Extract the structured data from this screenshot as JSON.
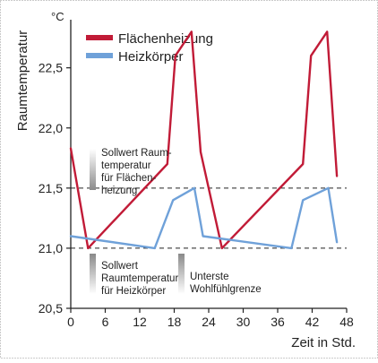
{
  "chart_data": {
    "type": "line",
    "title": "",
    "xlabel": "Zeit in Std.",
    "ylabel": "Raumtemperatur",
    "yunit": "°C",
    "xlim": [
      0,
      48
    ],
    "ylim": [
      20.5,
      22.9
    ],
    "xticks": [
      0,
      6,
      12,
      18,
      24,
      30,
      36,
      42,
      48
    ],
    "xtick_labels": [
      "0",
      "6",
      "12",
      "18",
      "24",
      "30",
      "36",
      "42",
      "48"
    ],
    "yticks": [
      20.5,
      21.0,
      21.5,
      22.0,
      22.5
    ],
    "ytick_labels": [
      "20,5",
      "21,0",
      "21,5",
      "22,0",
      "22,5"
    ],
    "grid": false,
    "legend_position": "top-right",
    "series": [
      {
        "name": "Flächenheizung",
        "color": "#c11b37",
        "points": [
          [
            0,
            21.83
          ],
          [
            3,
            21.0
          ],
          [
            16.8,
            21.7
          ],
          [
            18.2,
            22.6
          ],
          [
            21.0,
            22.8
          ],
          [
            22.6,
            21.8
          ],
          [
            26.3,
            21.0
          ],
          [
            40.4,
            21.7
          ],
          [
            41.8,
            22.6
          ],
          [
            44.6,
            22.8
          ],
          [
            46.3,
            21.6
          ]
        ]
      },
      {
        "name": "Heizkörper",
        "color": "#6fa1d9",
        "points": [
          [
            0,
            21.1
          ],
          [
            14.6,
            21.0
          ],
          [
            17.8,
            21.4
          ],
          [
            21.5,
            21.5
          ],
          [
            23.0,
            21.1
          ],
          [
            38.4,
            21.0
          ],
          [
            40.4,
            21.4
          ],
          [
            44.8,
            21.5
          ],
          [
            46.3,
            21.05
          ]
        ]
      }
    ],
    "reference_lines": [
      {
        "y": 21.5,
        "style": "dashed"
      },
      {
        "y": 21.0,
        "style": "dashed"
      }
    ],
    "annotations": [
      {
        "id": "soll-flaeche",
        "lines": [
          "Sollwert Raum-",
          "temperatur",
          "für Flächen-",
          "heizung"
        ]
      },
      {
        "id": "soll-heizkoerper",
        "lines": [
          "Sollwert",
          "Raumtemperatur",
          "für Heizkörper"
        ]
      },
      {
        "id": "wohlfuehl",
        "lines": [
          "Unterste",
          "Wohlfühlgrenze"
        ]
      }
    ]
  }
}
